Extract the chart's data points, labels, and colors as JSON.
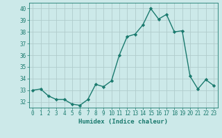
{
  "x": [
    0,
    1,
    2,
    3,
    4,
    5,
    6,
    7,
    8,
    9,
    10,
    11,
    12,
    13,
    14,
    15,
    16,
    17,
    18,
    19,
    20,
    21,
    22,
    23
  ],
  "y": [
    33.0,
    33.1,
    32.5,
    32.2,
    32.2,
    31.8,
    31.7,
    32.2,
    33.5,
    33.3,
    33.8,
    36.0,
    37.6,
    37.8,
    38.6,
    40.0,
    39.1,
    39.5,
    38.0,
    38.1,
    34.2,
    33.1,
    33.9,
    33.4
  ],
  "line_color": "#1a7a6e",
  "marker": "D",
  "marker_size": 2.2,
  "bg_color": "#cce9e9",
  "grid_color": "#b0cccc",
  "xlabel": "Humidex (Indice chaleur)",
  "ylim": [
    31.5,
    40.5
  ],
  "xlim": [
    -0.5,
    23.5
  ],
  "yticks": [
    32,
    33,
    34,
    35,
    36,
    37,
    38,
    39,
    40
  ],
  "xticks": [
    0,
    1,
    2,
    3,
    4,
    5,
    6,
    7,
    8,
    9,
    10,
    11,
    12,
    13,
    14,
    15,
    16,
    17,
    18,
    19,
    20,
    21,
    22,
    23
  ],
  "tick_fontsize": 5.5,
  "xlabel_fontsize": 6.5,
  "line_width": 1.0
}
